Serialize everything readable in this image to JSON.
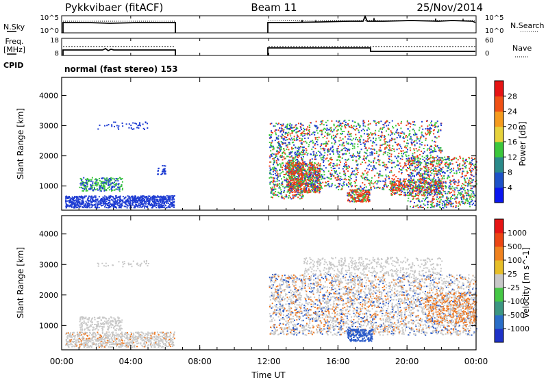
{
  "header": {
    "radar_title": "Pykkvibaer (fitACF)",
    "beam": "Beam 11",
    "date": "25/Nov/2014"
  },
  "left_labels": {
    "nsky": "N.Sky",
    "freq": "Freq.",
    "mhz": "[MHz]",
    "cpid": "CPID",
    "nsky_ticks": [
      "10^5",
      "10^0"
    ],
    "freq_ticks": [
      "18",
      "8"
    ]
  },
  "right_labels": {
    "nsearch": "N.Search",
    "nave": "Nave",
    "nsearch_ticks": [
      "10^5",
      "10^0"
    ],
    "nave_ticks": [
      "60",
      "0"
    ]
  },
  "cpid_text": "normal (fast stereo) 153",
  "chart_data": [
    {
      "type": "heatmap",
      "name": "power",
      "ylabel": "Slant Range [km]",
      "yticks": [
        "1000",
        "2000",
        "3000",
        "4000"
      ],
      "ylim": [
        200,
        4600
      ],
      "xlim_hours": [
        0,
        24
      ],
      "colorbar_label": "Power [dB]",
      "colorbar_ticks": [
        "4",
        "8",
        "12",
        "16",
        "20",
        "24",
        "28"
      ],
      "colorbar_colors": [
        "#0a16f0",
        "#1e52c8",
        "#2a8a8a",
        "#3cc73c",
        "#e6d23c",
        "#f59b1e",
        "#f05014",
        "#e61414"
      ],
      "colors": {
        "low": "#1e3cd2",
        "mid": "#3cc73c",
        "high": "#f03c14"
      }
    },
    {
      "type": "heatmap",
      "name": "velocity",
      "ylabel": "Slant Range [km]",
      "yticks": [
        "1000",
        "2000",
        "3000",
        "4000"
      ],
      "ylim": [
        200,
        4600
      ],
      "xlim_hours": [
        0,
        24
      ],
      "colorbar_label": "Velocity [m s^-1]",
      "colorbar_ticks": [
        "1000",
        "500",
        "100",
        "25",
        "-25",
        "-100",
        "-500",
        "-1000"
      ],
      "colorbar_colors": [
        "#1e32c8",
        "#2a6ec8",
        "#3c9682",
        "#46c846",
        "#c8c8c8",
        "#e6be28",
        "#f0821e",
        "#ec4614",
        "#e61414"
      ],
      "colors": {
        "ground": "#c8c8c8",
        "toward": "#2a5ac8",
        "away": "#f07820"
      }
    }
  ],
  "xaxis": {
    "ticks": [
      "00:00",
      "04:00",
      "08:00",
      "12:00",
      "16:00",
      "20:00",
      "00:00"
    ],
    "label": "Time UT"
  }
}
